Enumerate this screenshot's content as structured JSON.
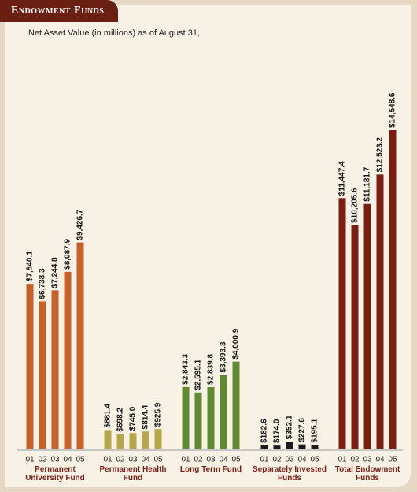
{
  "chart_data": {
    "type": "bar",
    "title": "Endowment Funds",
    "subtitle": "Net Asset Value (in millions) as of August 31,",
    "groups": [
      {
        "name": "Permanent University Fund",
        "color": "#c8602a",
        "categories": [
          "01",
          "02",
          "03",
          "04",
          "05"
        ],
        "values": [
          7540.1,
          6738.3,
          7244.8,
          8087.9,
          9426.7
        ],
        "value_labels": [
          "$7,540.1",
          "$6,738.3",
          "$7,244.8",
          "$8,087.9",
          "$9,426.7"
        ]
      },
      {
        "name": "Permanent Health Fund",
        "color": "#b5a64a",
        "categories": [
          "01",
          "02",
          "03",
          "04",
          "05"
        ],
        "values": [
          881.4,
          698.2,
          745.0,
          814.4,
          925.9
        ],
        "value_labels": [
          "$881.4",
          "$698.2",
          "$745.0",
          "$814.4",
          "$925.9"
        ]
      },
      {
        "name": "Long Term Fund",
        "color": "#5f8a32",
        "categories": [
          "01",
          "02",
          "03",
          "04",
          "05"
        ],
        "values": [
          2843.3,
          2595.1,
          2839.8,
          3393.3,
          4000.9
        ],
        "value_labels": [
          "$2,843.3",
          "$2,595.1",
          "$2,839.8",
          "$3,393.3",
          "$4,000.9"
        ]
      },
      {
        "name": "Separately Invested Funds",
        "color": "#1a1a1a",
        "categories": [
          "01",
          "02",
          "03",
          "04",
          "05"
        ],
        "values": [
          182.6,
          174.0,
          352.1,
          227.6,
          195.1
        ],
        "value_labels": [
          "$182.6",
          "$174.0",
          "$352.1",
          "$227.6",
          "$195.1"
        ]
      },
      {
        "name": "Total Endowment Funds",
        "color": "#7a1e14",
        "categories": [
          "01",
          "02",
          "03",
          "04",
          "05"
        ],
        "values": [
          11447.4,
          10205.6,
          11181.7,
          12523.2,
          14548.6
        ],
        "value_labels": [
          "$11,447.4",
          "$10,205.6",
          "$11,181.7",
          "$12,523.2",
          "$14,548.6"
        ]
      }
    ]
  }
}
